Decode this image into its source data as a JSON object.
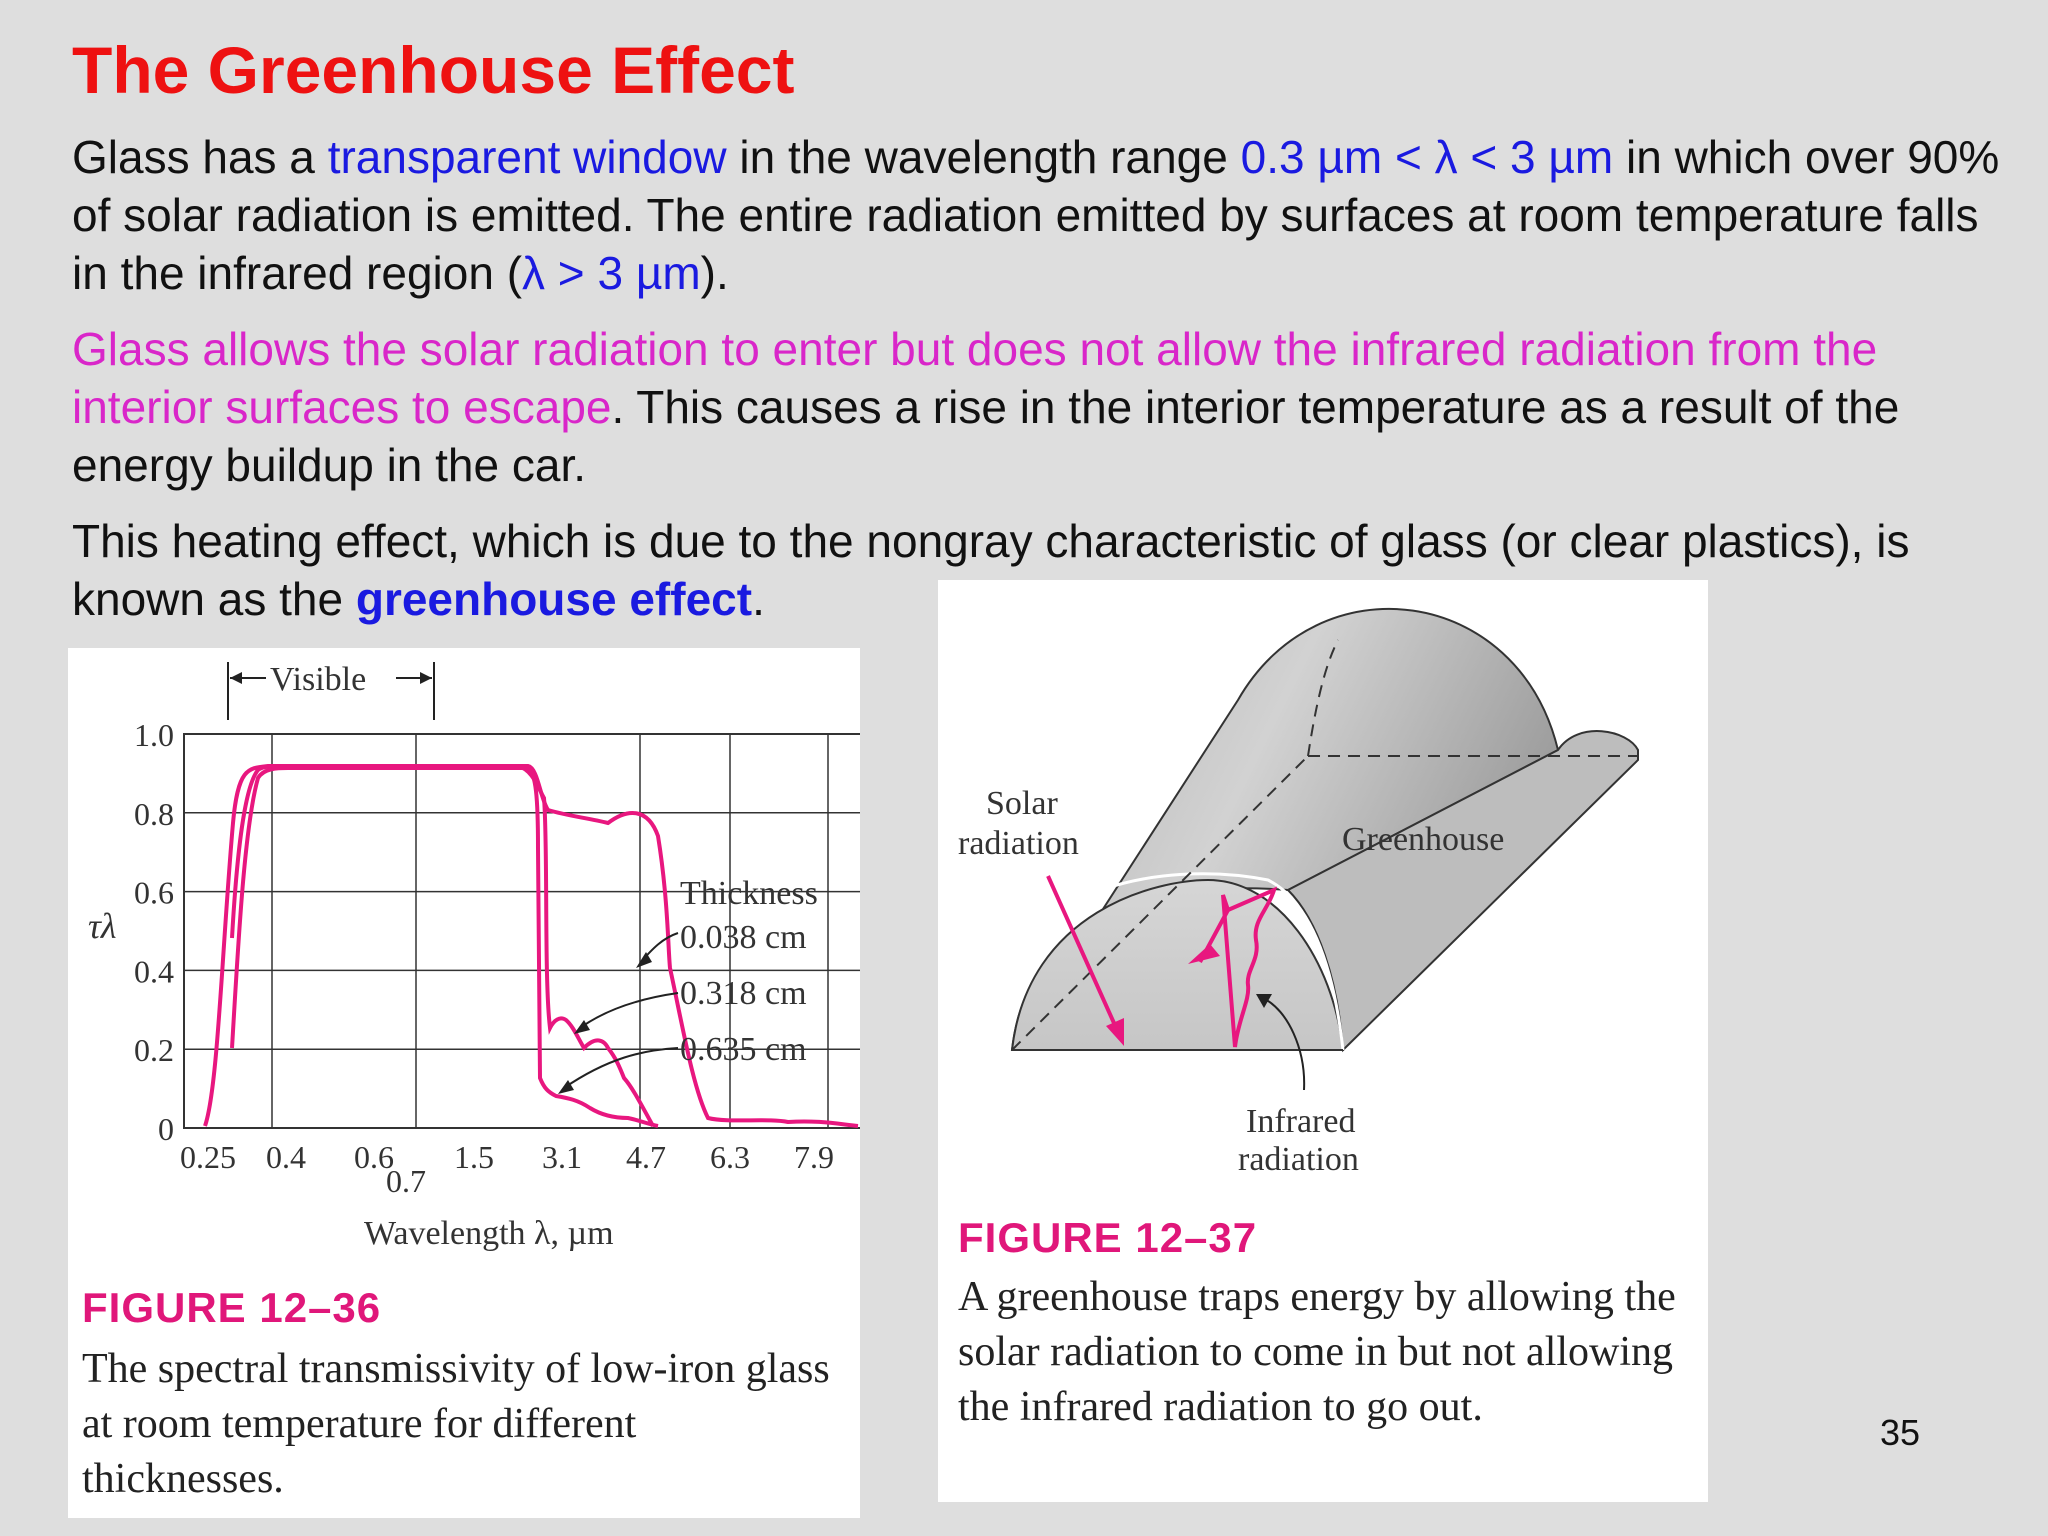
{
  "slide": {
    "title": "The Greenhouse Effect",
    "page_number": "35"
  },
  "paragraphs": {
    "p1": {
      "t1": "Glass has a ",
      "t2": "transparent window",
      "t3": " in the wavelength range ",
      "t4": "0.3 µm < λ < 3 µm",
      "t5": " in which over 90% of solar radiation is emitted. The entire radiation emitted by surfaces at room temperature falls in the infrared region (",
      "t6": "λ > 3 µm",
      "t7": ")."
    },
    "p2": {
      "t1": "Glass allows the solar radiation to enter but does not allow the infrared radiation from the interior surfaces to escape",
      "t2": ". This causes a rise in the interior temperature as a result of the energy buildup in the car."
    },
    "p3": {
      "t1": "This heating effect, which is due to the nongray characteristic of glass (or clear plastics), is known as the ",
      "t2": "greenhouse effect",
      "t3": "."
    }
  },
  "figure1": {
    "label": "FIGURE 12–36",
    "caption": "The spectral transmissivity of low-iron glass at room temperature for different thicknesses.",
    "visible_label": "Visible",
    "y_axis_symbol": "τλ",
    "x_axis_label": "Wavelength λ, µm",
    "legend_title": "Thickness",
    "y_tick_labels": [
      "0",
      "0.2",
      "0.4",
      "0.6",
      "0.8",
      "1.0"
    ],
    "x_tick_labels": [
      "0.25",
      "0.4",
      "0.6",
      "0.7",
      "1.5",
      "3.1",
      "4.7",
      "6.3",
      "7.9"
    ],
    "series_labels": [
      "0.038 cm",
      "0.318 cm",
      "0.635 cm"
    ],
    "line_color": "#e8177f"
  },
  "chart_data": {
    "type": "line",
    "x_unit": "µm",
    "ylim": [
      0,
      1.0
    ],
    "x_ticks": [
      0.25,
      0.4,
      0.6,
      0.7,
      1.5,
      3.1,
      4.7,
      6.3,
      7.9
    ],
    "grid": true,
    "legend_title": "Thickness",
    "series": [
      {
        "name": "0.038 cm",
        "x": [
          0.25,
          0.3,
          0.35,
          0.4,
          1.5,
          2.8,
          3.1,
          3.5,
          4.0,
          4.5,
          4.7,
          5.0,
          6.0,
          7.0,
          7.9
        ],
        "y": [
          0.0,
          0.5,
          0.9,
          0.91,
          0.91,
          0.91,
          0.8,
          0.78,
          0.76,
          0.4,
          0.3,
          0.03,
          0.02,
          0.01,
          0.0
        ]
      },
      {
        "name": "0.318 cm",
        "x": [
          0.3,
          0.35,
          0.4,
          1.5,
          3.0,
          3.05,
          3.1,
          3.3,
          3.6,
          4.0,
          4.3,
          4.6
        ],
        "y": [
          0.4,
          0.88,
          0.91,
          0.91,
          0.8,
          0.25,
          0.28,
          0.22,
          0.18,
          0.1,
          0.03,
          0.0
        ]
      },
      {
        "name": "0.635 cm",
        "x": [
          0.3,
          0.35,
          0.4,
          1.5,
          3.0,
          3.05,
          3.1,
          3.4,
          3.8,
          4.2
        ],
        "y": [
          0.2,
          0.85,
          0.9,
          0.9,
          0.88,
          0.05,
          0.05,
          0.04,
          0.02,
          0.0
        ]
      }
    ]
  },
  "figure2": {
    "label": "FIGURE 12–37",
    "caption": "A greenhouse traps energy by allowing the solar radiation to come in but not allowing the infrared radiation to go out.",
    "solar_line1": "Solar",
    "solar_line2": "radiation",
    "greenhouse_label": "Greenhouse",
    "infrared_line1": "Infrared",
    "infrared_line2": "radiation",
    "arrow_color": "#e8177f"
  }
}
